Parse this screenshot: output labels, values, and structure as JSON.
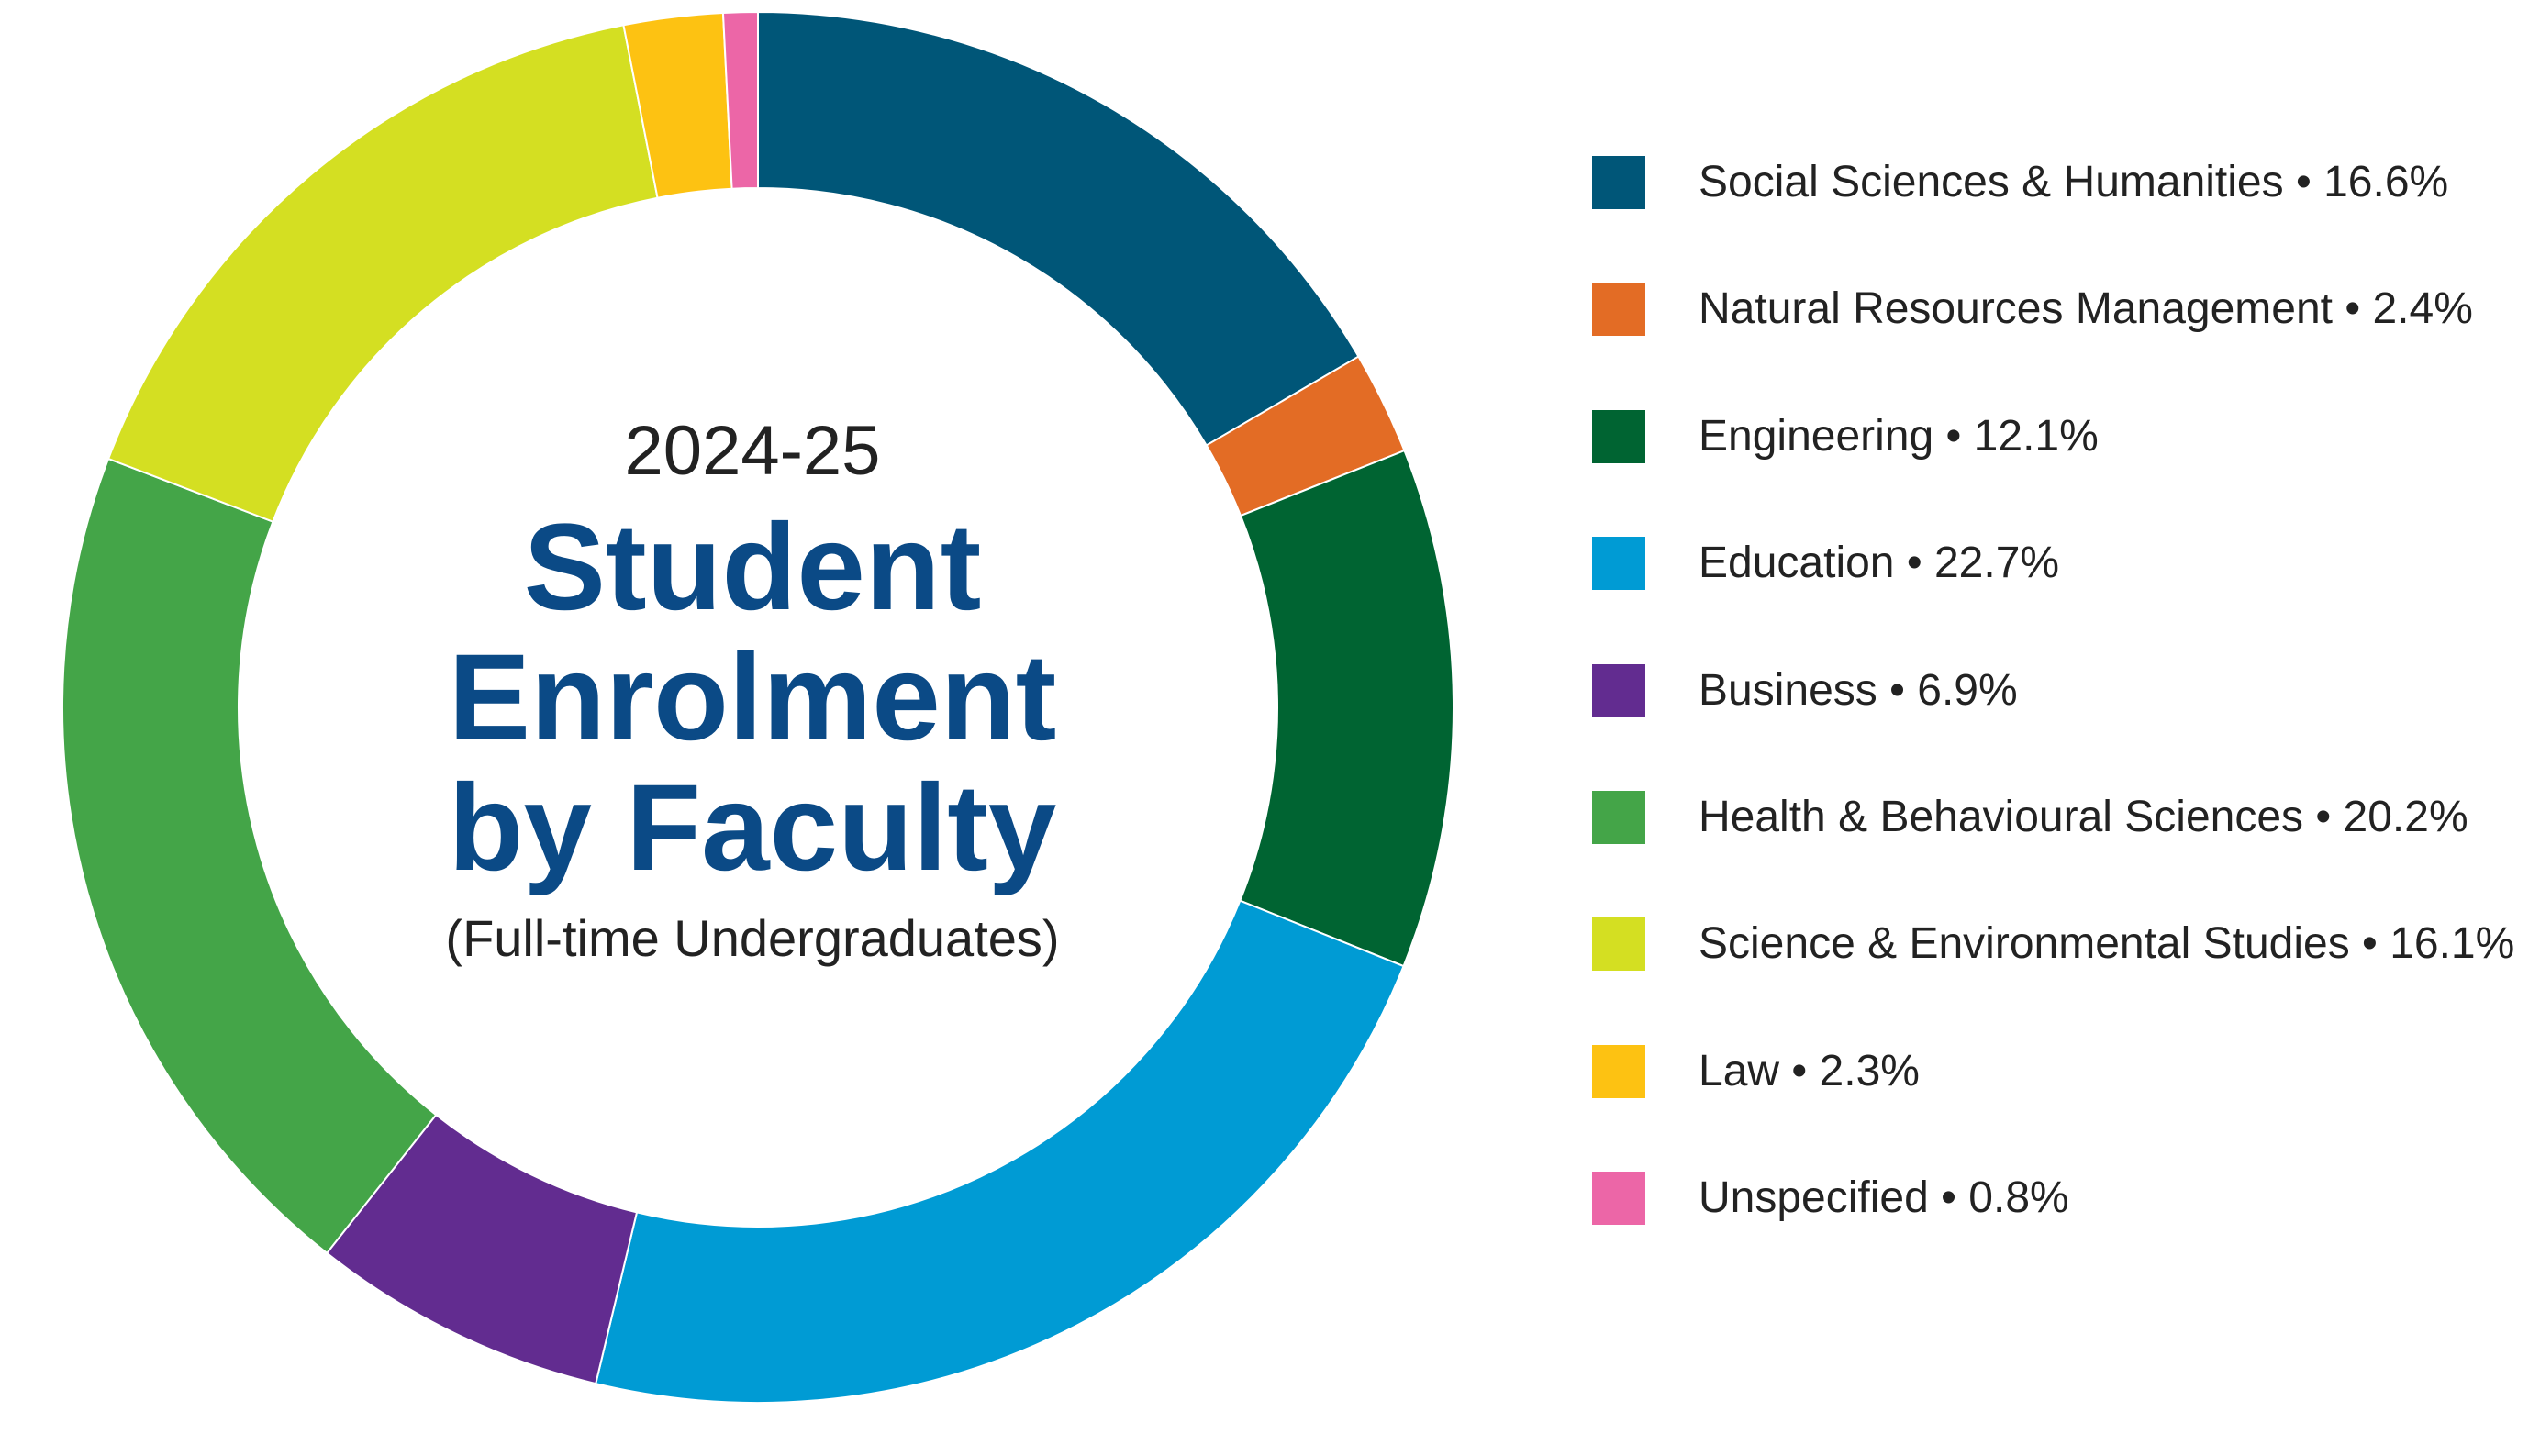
{
  "chart": {
    "year": "2024-25",
    "title_lines": [
      "Student",
      "Enrolment",
      "by Faculty"
    ],
    "subtitle": "(Full-time Undergraduates)"
  },
  "legend": [
    {
      "label": "Social Sciences & Humanities • 16.6%",
      "color": "#005678"
    },
    {
      "label": "Natural Resources Management • 2.4%",
      "color": "#e36c25"
    },
    {
      "label": "Engineering • 12.1%",
      "color": "#006432"
    },
    {
      "label": "Education • 22.7%",
      "color": "#009bd4"
    },
    {
      "label": "Business • 6.9%",
      "color": "#622c90"
    },
    {
      "label": "Health & Behavioural Sciences • 20.2%",
      "color": "#44a548"
    },
    {
      "label": "Science & Environmental Studies • 16.1%",
      "color": "#d4df22"
    },
    {
      "label": "Law • 2.3%",
      "color": "#fdc212"
    },
    {
      "label": "Unspecified • 0.8%",
      "color": "#ec66a7"
    }
  ],
  "chart_data": {
    "type": "pie",
    "donut": true,
    "title": "Student Enrolment by Faculty",
    "subtitle": "(Full-time Undergraduates)",
    "period": "2024-25",
    "units": "%",
    "start_angle": "12 o'clock, clockwise",
    "slices": [
      {
        "name": "Social Sciences & Humanities",
        "value": 16.6,
        "color": "#005678"
      },
      {
        "name": "Natural Resources Management",
        "value": 2.4,
        "color": "#e36c25"
      },
      {
        "name": "Engineering",
        "value": 12.1,
        "color": "#006432"
      },
      {
        "name": "Education",
        "value": 22.7,
        "color": "#009bd4"
      },
      {
        "name": "Business",
        "value": 6.9,
        "color": "#622c90"
      },
      {
        "name": "Health & Behavioural Sciences",
        "value": 20.2,
        "color": "#44a548"
      },
      {
        "name": "Science & Environmental Studies",
        "value": 16.1,
        "color": "#d4df22"
      },
      {
        "name": "Law",
        "value": 2.3,
        "color": "#fdc212"
      },
      {
        "name": "Unspecified",
        "value": 0.8,
        "color": "#ec66a7"
      }
    ],
    "legend_position": "right"
  }
}
